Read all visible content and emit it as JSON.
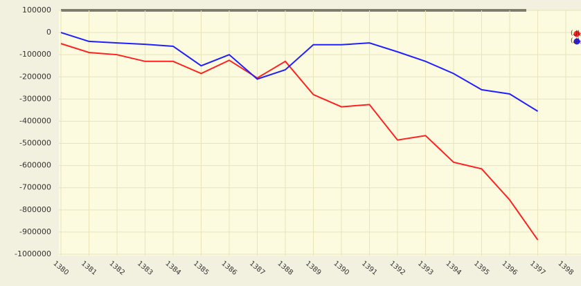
{
  "chart_data": {
    "type": "line",
    "categories": [
      "1380",
      "1381",
      "1382",
      "1383",
      "1384",
      "1385",
      "1386",
      "1387",
      "1388",
      "1389",
      "1390",
      "1391",
      "1392",
      "1393",
      "1394",
      "1395",
      "1396",
      "1397",
      "1398"
    ],
    "series": [
      {
        "name": "تراز عملیاتی (میلیارد ریال)",
        "color": "#ff2020",
        "values": [
          -50000,
          -90000,
          -100000,
          -130000,
          -130000,
          -185000,
          -125000,
          -205000,
          -130000,
          -280000,
          -335000,
          -325000,
          -485000,
          -465000,
          -585000,
          -615000,
          -755000,
          -935000,
          null
        ]
      },
      {
        "name": "تراز عملیاتی و سرمایه‌ای (میلیارد ریال)",
        "color": "#2020ff",
        "values": [
          0,
          -40000,
          -47000,
          -53000,
          -62000,
          -150000,
          -100000,
          -210000,
          -168000,
          -55000,
          -55000,
          -47000,
          -87000,
          -130000,
          -185000,
          -258000,
          -277000,
          -355000,
          null
        ]
      }
    ],
    "ylim": [
      -1000000,
      100000
    ],
    "yticks": [
      100000,
      0,
      -100000,
      -200000,
      -300000,
      -400000,
      -500000,
      -600000,
      -700000,
      -800000,
      -900000,
      -1000000
    ],
    "grid": true
  }
}
